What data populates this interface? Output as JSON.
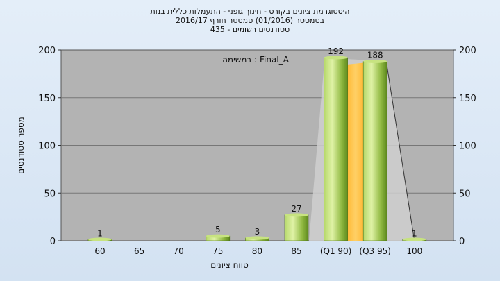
{
  "chart_data": {
    "type": "bar",
    "title": "היסטוגרמת ציונים בקורס - חינוך גופני - התעמלות כללית בנות",
    "subtitle_lines": [
      "בסמסטר  (01/2016)  סמסטר חורף 2016/17",
      "סטודנטים רשומים - 435"
    ],
    "annotation": "במשימה : Final_A",
    "xlabel": "טווח ציונים",
    "ylabel": "מספר סטודנטים",
    "categories": [
      "60",
      "65",
      "70",
      "75",
      "80",
      "85",
      "(Q1 90)",
      "(Q3 95)",
      "100"
    ],
    "values": [
      1,
      0,
      0,
      5,
      3,
      27,
      192,
      188,
      1
    ],
    "value_labels": [
      "1",
      "",
      "",
      "5",
      "3",
      "27",
      "192",
      "188",
      "1"
    ],
    "ylim": [
      0,
      200
    ],
    "yticks": [
      "0",
      "50",
      "100",
      "150",
      "200"
    ],
    "grid": true,
    "secondary_y_axis": true,
    "highlight_between": [
      "(Q1 90)",
      "(Q3 95)"
    ],
    "colors": {
      "bar_light": "#d8ee9a",
      "bar_mid": "#9bc24a",
      "bar_dark": "#5e8a1e",
      "plot_bg": "#b3b3b3",
      "quartile_band": "#ffc44d",
      "distribution_fill": "#cfcfcf"
    }
  }
}
